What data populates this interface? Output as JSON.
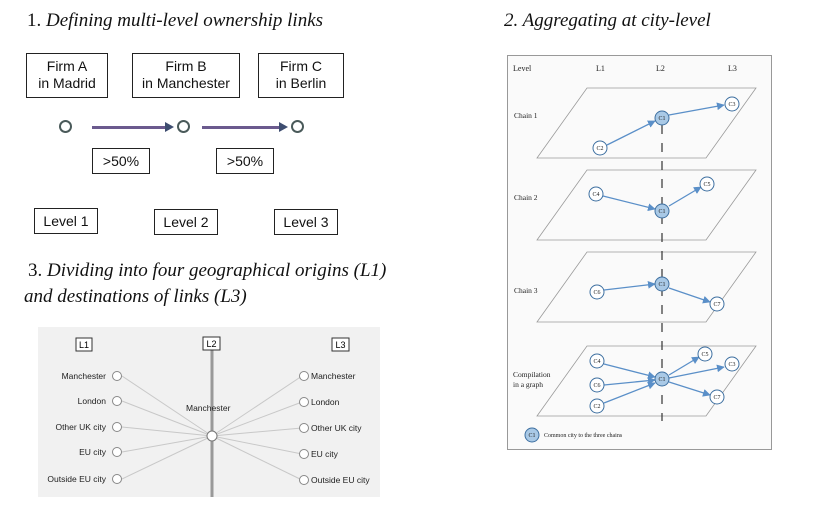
{
  "panel1": {
    "title_num": "1. ",
    "title_text": "Defining multi-level ownership links",
    "firms": [
      {
        "line1": "Firm A",
        "line2": "in Madrid"
      },
      {
        "line1": "Firm B",
        "line2": "in Manchester"
      },
      {
        "line1": "Firm C",
        "line2": "in Berlin"
      }
    ],
    "thresholds": [
      ">50%",
      ">50%"
    ],
    "levels": [
      "Level 1",
      "Level 2",
      "Level 3"
    ]
  },
  "panel2": {
    "title": "2. Aggregating at city-level",
    "headers": {
      "level": "Level",
      "l1": "L1",
      "l2": "L2",
      "l3": "L3"
    },
    "chains": [
      "Chain 1",
      "Chain 2",
      "Chain 3"
    ],
    "compilation_line1": "Compilation",
    "compilation_line2": "in a graph",
    "nodes": {
      "c1": "C1",
      "c2": "C2",
      "c3": "C3",
      "c4": "C4",
      "c5": "C5",
      "c6": "C6",
      "c7": "C7"
    },
    "legend_node": "C1",
    "legend_text": "Common city to the three chains",
    "colors": {
      "node_fill": "#a9c9e6",
      "node_stroke": "#3d6fa0",
      "arrow": "#5a8fc8",
      "plane": "#999999"
    }
  },
  "panel3": {
    "title_num": "3. ",
    "title_line1": "Dividing into four geographical origins (L1)",
    "title_line2": "and destinations of links (L3)",
    "l1": "L1",
    "l2": "L2",
    "l3": "L3",
    "center_label": "Manchester",
    "origins": [
      "Manchester",
      "London",
      "Other UK city",
      "EU city",
      "Outside EU city"
    ],
    "destinations": [
      "Manchester",
      "London",
      "Other UK city",
      "EU city",
      "Outside EU city"
    ]
  }
}
